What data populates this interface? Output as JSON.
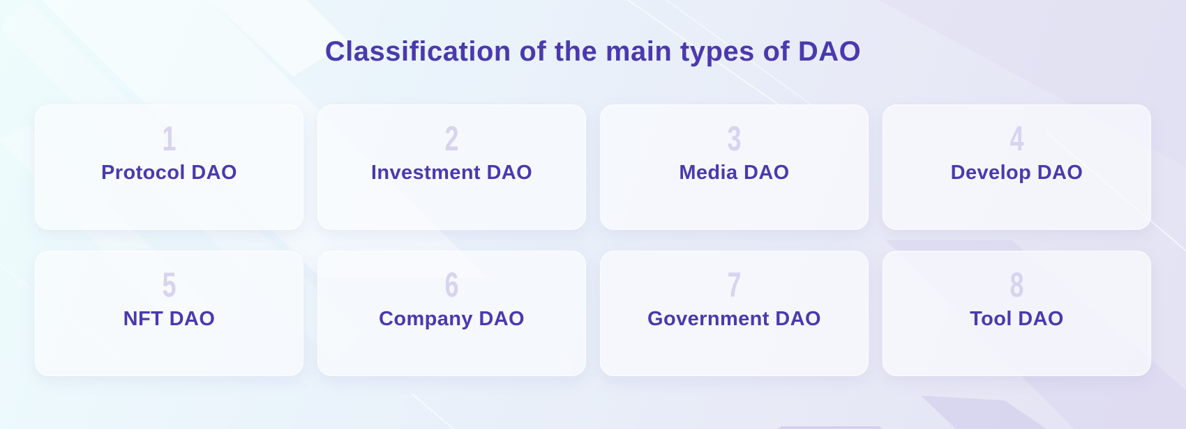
{
  "title": "Classification of the main types of DAO",
  "colors": {
    "accent": "#4a39ae",
    "number": "#d6d4ee",
    "card": "#fafbfd"
  },
  "cards": [
    {
      "number": "1",
      "label": "Protocol DAO"
    },
    {
      "number": "2",
      "label": "Investment DAO"
    },
    {
      "number": "3",
      "label": "Media DAO"
    },
    {
      "number": "4",
      "label": "Develop DAO"
    },
    {
      "number": "5",
      "label": "NFT DAO"
    },
    {
      "number": "6",
      "label": "Company DAO"
    },
    {
      "number": "7",
      "label": "Government DAO"
    },
    {
      "number": "8",
      "label": "Tool DAO"
    }
  ]
}
